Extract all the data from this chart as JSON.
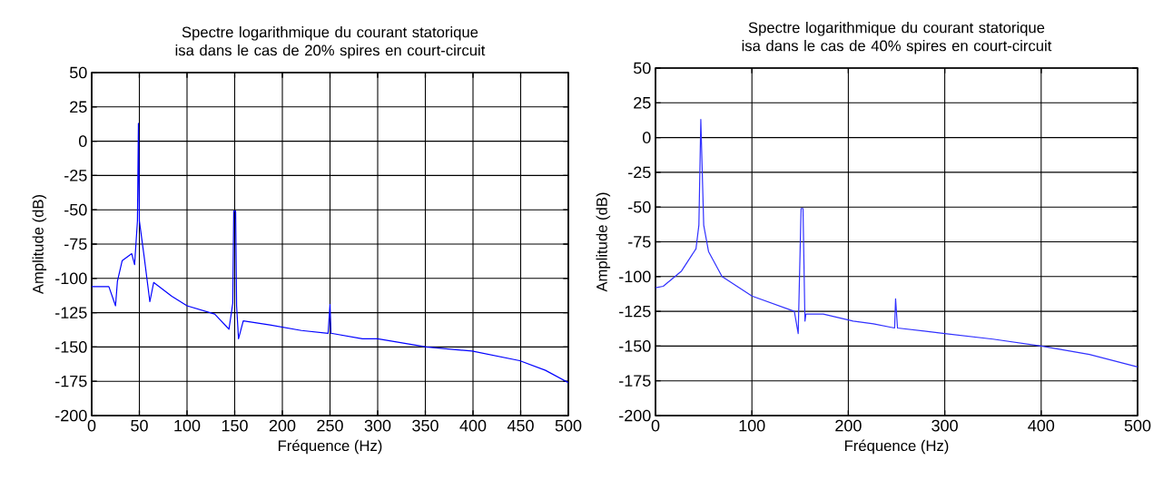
{
  "chart_data": [
    {
      "type": "line",
      "title": "Spectre logarithmique du courant statorique isa dans le cas de 20% spires en court-circuit",
      "xlabel": "Fréquence (Hz)",
      "ylabel": "Amplitude (dB)",
      "color": "#0000ff",
      "grid": true,
      "x": [
        0,
        18,
        25,
        27,
        32,
        42,
        45,
        48,
        49,
        50,
        55,
        61,
        65,
        84,
        100,
        129,
        144,
        148,
        149,
        151,
        152,
        154,
        159,
        187,
        220,
        248,
        250,
        251,
        284,
        300,
        351,
        399,
        449,
        476,
        500
      ],
      "values": [
        -106,
        -106,
        -120,
        -102,
        -87,
        -82,
        -90,
        -58,
        13,
        -58,
        -84,
        -117,
        -103,
        -113,
        -120,
        -126,
        -137,
        -118,
        -51,
        -51,
        -120,
        -144,
        -131,
        -134,
        -138,
        -140,
        -119,
        -140,
        -144,
        -144,
        -150,
        -153,
        -160,
        -167,
        -176
      ],
      "xlim": [
        0,
        500
      ],
      "ylim": [
        -200,
        50
      ],
      "xticks": [
        0,
        50,
        100,
        150,
        200,
        250,
        300,
        350,
        400,
        450,
        500
      ],
      "yticks": [
        -200,
        -175,
        -150,
        -125,
        -100,
        -75,
        -50,
        -25,
        0,
        25,
        50
      ]
    },
    {
      "type": "line",
      "title": "Spectre logarithmique du courant statorique isa dans le cas de 40% spires en court-circuit",
      "xlabel": "Fréquence (Hz)",
      "ylabel": "Amplitude (dB)",
      "color": "#3030ff",
      "grid": true,
      "x": [
        0,
        8,
        27,
        42,
        45,
        47,
        50,
        55,
        69,
        100,
        144,
        148,
        151,
        153,
        155,
        156,
        174,
        205,
        226,
        248,
        249,
        251,
        300,
        350,
        400,
        450,
        500
      ],
      "values": [
        -108,
        -107,
        -96,
        -80,
        -63,
        13,
        -63,
        -82,
        -100,
        -114,
        -125,
        -141,
        -51,
        -51,
        -132,
        -127,
        -127,
        -132,
        -134,
        -137,
        -116,
        -137,
        -141,
        -145,
        -150,
        -156,
        -165
      ],
      "xlim": [
        0,
        500
      ],
      "ylim": [
        -200,
        50
      ],
      "xticks": [
        0,
        100,
        200,
        300,
        400,
        500
      ],
      "yticks": [
        -200,
        -175,
        -150,
        -125,
        -100,
        -75,
        -50,
        -25,
        0,
        25,
        50
      ]
    }
  ]
}
